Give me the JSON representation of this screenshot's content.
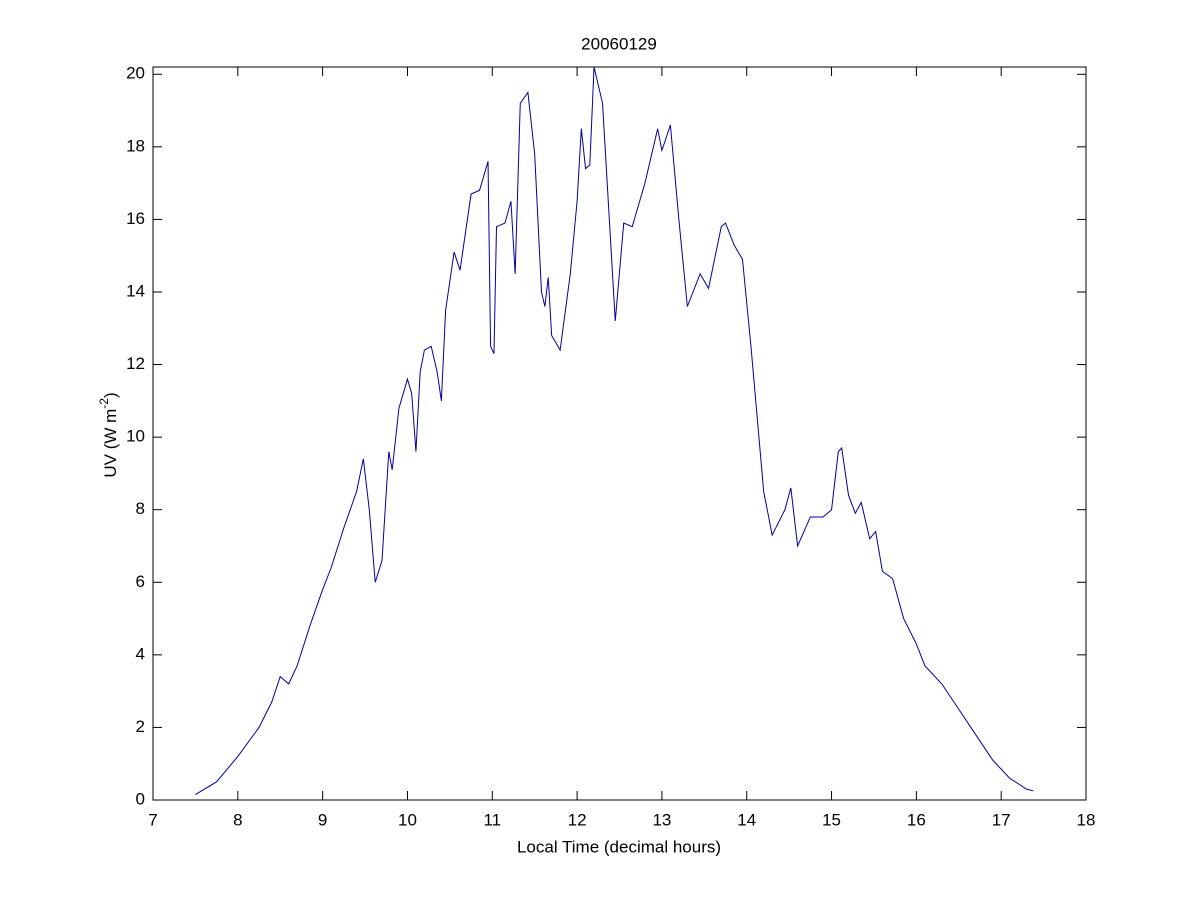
{
  "chart_data": {
    "type": "line",
    "title": "20060129",
    "xlabel": "Local Time (decimal hours)",
    "ylabel": {
      "text": "UV (W m",
      "superscript": "-2",
      "tail": ")"
    },
    "x": [
      7.5,
      7.75,
      8.0,
      8.25,
      8.4,
      8.5,
      8.6,
      8.7,
      8.85,
      9.0,
      9.1,
      9.25,
      9.4,
      9.48,
      9.55,
      9.62,
      9.7,
      9.78,
      9.82,
      9.9,
      10.0,
      10.05,
      10.1,
      10.15,
      10.2,
      10.28,
      10.35,
      10.4,
      10.45,
      10.55,
      10.62,
      10.75,
      10.85,
      10.95,
      10.98,
      11.02,
      11.05,
      11.15,
      11.22,
      11.27,
      11.33,
      11.42,
      11.5,
      11.58,
      11.62,
      11.66,
      11.7,
      11.8,
      11.92,
      12.0,
      12.05,
      12.1,
      12.15,
      12.2,
      12.3,
      12.45,
      12.55,
      12.65,
      12.8,
      12.85,
      12.95,
      13.0,
      13.1,
      13.2,
      13.3,
      13.45,
      13.55,
      13.7,
      13.75,
      13.85,
      13.95,
      14.05,
      14.2,
      14.3,
      14.45,
      14.52,
      14.6,
      14.75,
      14.9,
      15.0,
      15.08,
      15.12,
      15.2,
      15.28,
      15.35,
      15.45,
      15.52,
      15.6,
      15.72,
      15.85,
      16.0,
      16.1,
      16.3,
      16.5,
      16.7,
      16.9,
      17.1,
      17.3,
      17.38
    ],
    "series": [
      {
        "name": "UV",
        "color": "#0000a0",
        "values": [
          0.15,
          0.5,
          1.2,
          2.0,
          2.7,
          3.4,
          3.2,
          3.7,
          4.8,
          5.8,
          6.4,
          7.5,
          8.5,
          9.4,
          8.0,
          6.0,
          6.6,
          9.6,
          9.1,
          10.8,
          11.6,
          11.2,
          9.6,
          11.8,
          12.4,
          12.5,
          11.8,
          11.0,
          13.5,
          15.1,
          14.6,
          16.7,
          16.8,
          17.6,
          12.5,
          12.3,
          15.8,
          15.9,
          16.5,
          14.5,
          19.2,
          19.5,
          17.8,
          14.0,
          13.6,
          14.4,
          12.8,
          12.4,
          14.5,
          16.5,
          18.5,
          17.4,
          17.5,
          20.2,
          19.2,
          13.2,
          15.9,
          15.8,
          17.0,
          17.5,
          18.5,
          17.9,
          18.6,
          16.0,
          13.6,
          14.5,
          14.1,
          15.8,
          15.9,
          15.3,
          14.9,
          12.5,
          8.5,
          7.3,
          8.0,
          8.6,
          7.0,
          7.8,
          7.8,
          8.0,
          9.6,
          9.7,
          8.4,
          7.9,
          8.2,
          7.2,
          7.4,
          6.3,
          6.1,
          5.0,
          4.3,
          3.7,
          3.2,
          2.5,
          1.8,
          1.1,
          0.6,
          0.3,
          0.25
        ]
      }
    ],
    "xlim": [
      7,
      18
    ],
    "xticks": [
      7,
      8,
      9,
      10,
      11,
      12,
      13,
      14,
      15,
      16,
      17,
      18
    ],
    "ylim": [
      0,
      20.2
    ],
    "yticks": [
      0,
      2,
      4,
      6,
      8,
      10,
      12,
      14,
      16,
      18,
      20
    ],
    "grid": false
  }
}
